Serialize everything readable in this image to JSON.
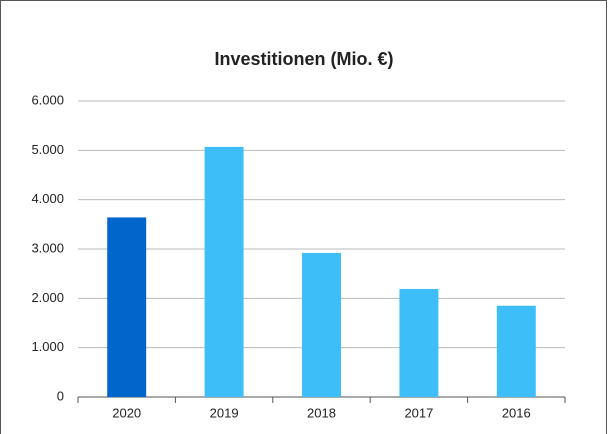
{
  "chart_data": {
    "type": "bar",
    "title": "Investitionen (Mio. €)",
    "categories": [
      "2020",
      "2019",
      "2018",
      "2017",
      "2016"
    ],
    "values": [
      3640,
      5070,
      2920,
      2190,
      1850
    ],
    "colors": [
      "#0066cc",
      "#3dbef8",
      "#3dbef8",
      "#3dbef8",
      "#3dbef8"
    ],
    "ylim": [
      0,
      6000
    ],
    "yticks": [
      0,
      {
        "value": 1000,
        "label": "1.000"
      },
      {
        "value": 2000,
        "label": "2.000"
      },
      {
        "value": 3000,
        "label": "3.000"
      },
      {
        "value": 4000,
        "label": "4.000"
      },
      {
        "value": 5000,
        "label": "5.000"
      },
      {
        "value": 6000,
        "label": "6.000"
      }
    ],
    "grid": true
  }
}
